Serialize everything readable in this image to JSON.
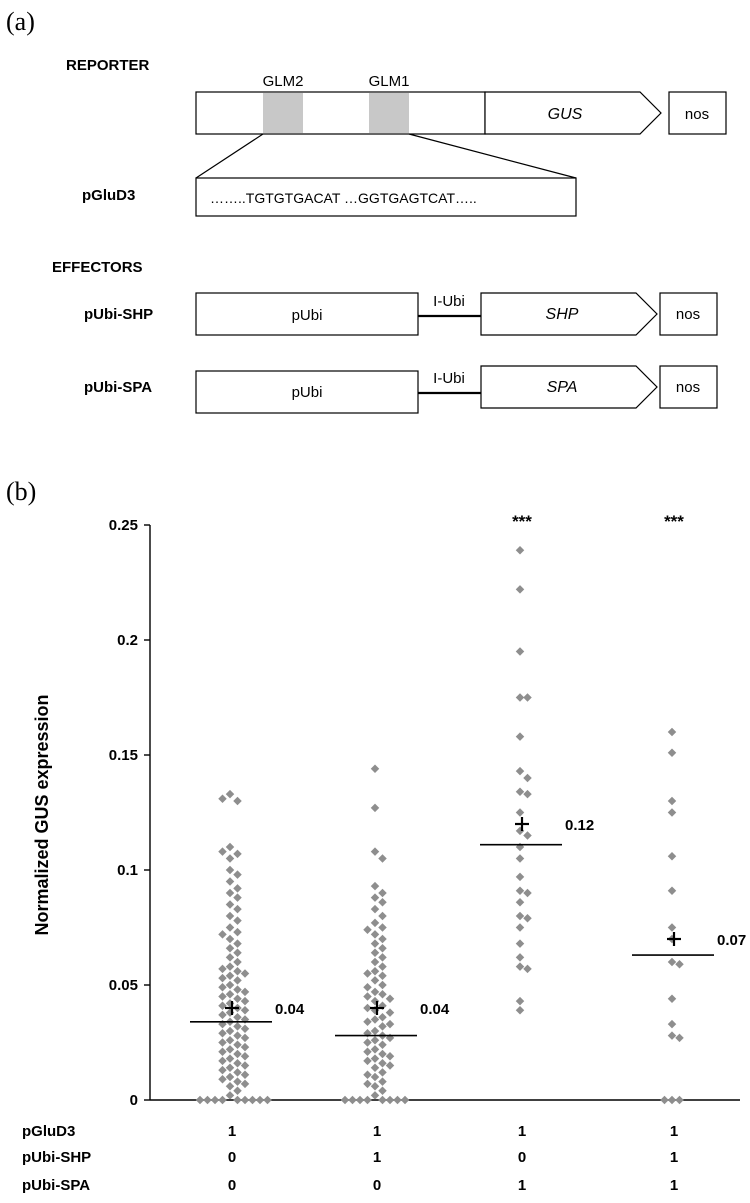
{
  "panel_a": {
    "label": "(a)",
    "reporter": {
      "title": "REPORTER",
      "glm2": "GLM2",
      "glm1": "GLM1",
      "gene": "GUS",
      "terminator": "nos",
      "promoter_name": "pGluD3",
      "sequence": "……..TGTGTGACAT …GGTGAGTCAT….."
    },
    "effectors": {
      "title": "EFFECTORS",
      "rows": [
        {
          "name": "pUbi-SHP",
          "promoter": "pUbi",
          "intron": "I-Ubi",
          "gene": "SHP",
          "terminator": "nos"
        },
        {
          "name": "pUbi-SPA",
          "promoter": "pUbi",
          "intron": "I-Ubi",
          "gene": "SPA",
          "terminator": "nos"
        }
      ]
    }
  },
  "panel_b": {
    "label": "(b)",
    "chart_data": {
      "type": "scatter",
      "ylabel": "Normalized GUS expression",
      "ylim": [
        0,
        0.25
      ],
      "yticks": [
        "0",
        "0.05",
        "0.1",
        "0.15",
        "0.2",
        "0.25"
      ],
      "ytick_values": [
        0,
        0.05,
        0.1,
        0.15,
        0.2,
        0.25
      ],
      "marker_color": "#8e8e8e",
      "groups": [
        {
          "median": 0.034,
          "mean": 0.04,
          "mean_label": "0.04",
          "significance": "",
          "values": [
            0.133,
            0.13,
            0.131,
            0.11,
            0.107,
            0.108,
            0.105,
            0.1,
            0.098,
            0.095,
            0.092,
            0.09,
            0.088,
            0.085,
            0.083,
            0.08,
            0.078,
            0.075,
            0.073,
            0.072,
            0.07,
            0.068,
            0.066,
            0.064,
            0.062,
            0.06,
            0.058,
            0.057,
            0.056,
            0.055,
            0.054,
            0.053,
            0.052,
            0.05,
            0.049,
            0.048,
            0.047,
            0.046,
            0.045,
            0.044,
            0.043,
            0.042,
            0.041,
            0.04,
            0.039,
            0.038,
            0.037,
            0.036,
            0.035,
            0.034,
            0.033,
            0.032,
            0.031,
            0.03,
            0.029,
            0.028,
            0.027,
            0.026,
            0.025,
            0.024,
            0.023,
            0.022,
            0.021,
            0.02,
            0.019,
            0.018,
            0.017,
            0.016,
            0.015,
            0.014,
            0.013,
            0.012,
            0.011,
            0.01,
            0.009,
            0.008,
            0.007,
            0.006,
            0.004,
            0.002,
            0,
            0,
            0,
            0,
            0,
            0,
            0,
            0,
            0
          ]
        },
        {
          "median": 0.028,
          "mean": 0.04,
          "mean_label": "0.04",
          "significance": "",
          "values": [
            0.144,
            0.127,
            0.108,
            0.105,
            0.093,
            0.09,
            0.088,
            0.086,
            0.083,
            0.08,
            0.077,
            0.075,
            0.074,
            0.072,
            0.07,
            0.068,
            0.066,
            0.064,
            0.062,
            0.06,
            0.058,
            0.056,
            0.055,
            0.054,
            0.052,
            0.05,
            0.049,
            0.047,
            0.046,
            0.045,
            0.044,
            0.043,
            0.041,
            0.04,
            0.039,
            0.038,
            0.036,
            0.035,
            0.034,
            0.033,
            0.032,
            0.03,
            0.029,
            0.028,
            0.027,
            0.026,
            0.025,
            0.024,
            0.022,
            0.021,
            0.02,
            0.019,
            0.018,
            0.017,
            0.016,
            0.015,
            0.014,
            0.012,
            0.011,
            0.01,
            0.008,
            0.007,
            0.006,
            0.004,
            0.002,
            0,
            0,
            0,
            0,
            0,
            0,
            0,
            0
          ]
        },
        {
          "median": 0.111,
          "mean": 0.12,
          "mean_label": "0.12",
          "significance": "***",
          "values": [
            0.239,
            0.222,
            0.195,
            0.175,
            0.175,
            0.158,
            0.143,
            0.14,
            0.134,
            0.133,
            0.125,
            0.117,
            0.115,
            0.11,
            0.105,
            0.097,
            0.091,
            0.09,
            0.086,
            0.08,
            0.079,
            0.075,
            0.068,
            0.062,
            0.058,
            0.057,
            0.043,
            0.039
          ]
        },
        {
          "median": 0.063,
          "mean": 0.07,
          "mean_label": "0.07",
          "significance": "***",
          "values": [
            0.16,
            0.151,
            0.13,
            0.125,
            0.106,
            0.091,
            0.075,
            0.07,
            0.06,
            0.059,
            0.044,
            0.033,
            0.028,
            0.027,
            0,
            0,
            0
          ]
        }
      ]
    },
    "treatment_table": {
      "rows": [
        {
          "label": "pGluD3",
          "values": [
            "1",
            "1",
            "1",
            "1"
          ]
        },
        {
          "label": "pUbi-SHP",
          "values": [
            "0",
            "1",
            "0",
            "1"
          ]
        },
        {
          "label": "pUbi-SPA",
          "values": [
            "0",
            "0",
            "1",
            "1"
          ]
        }
      ]
    }
  }
}
